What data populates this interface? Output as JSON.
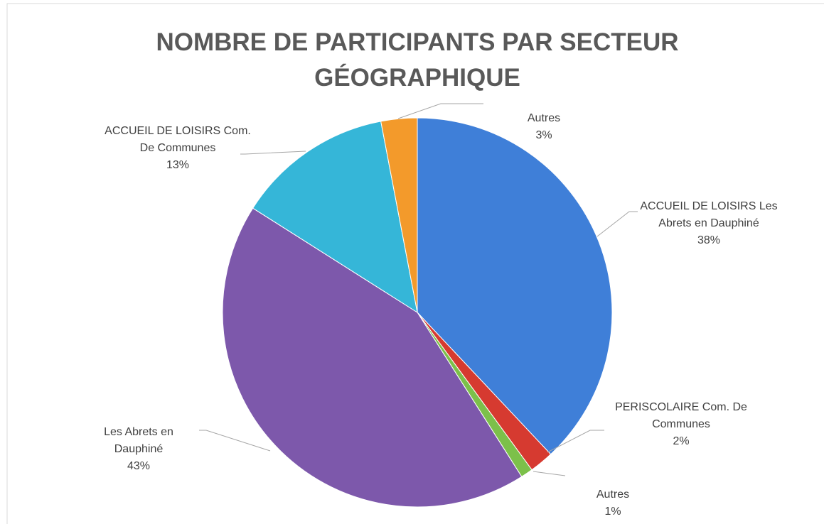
{
  "chart_data": {
    "type": "pie",
    "title": "NOMBRE DE PARTICIPANTS PAR SECTEUR GÉOGRAPHIQUE",
    "categories": [
      "ACCUEIL DE LOISIRS Les Abrets en Dauphiné",
      "PERISCOLAIRE Com. De Communes",
      "Autres",
      "Les Abrets en Dauphiné",
      "ACCUEIL DE LOISIRS Com. De Communes",
      "Autres"
    ],
    "values": [
      38,
      2,
      1,
      43,
      13,
      3
    ],
    "value_labels": [
      "38%",
      "2%",
      "1%",
      "43%",
      "13%",
      "3%"
    ],
    "colors": [
      "#3f7fd8",
      "#d63a30",
      "#7cc04a",
      "#7d58ab",
      "#35b6d8",
      "#f39a2b"
    ]
  }
}
